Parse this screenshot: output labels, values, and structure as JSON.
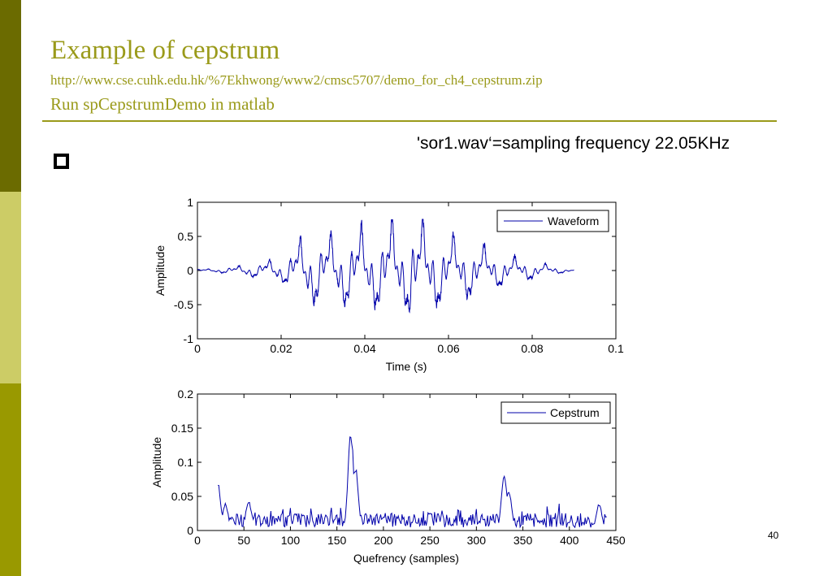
{
  "slide": {
    "title": "Example of cepstrum",
    "url": "http://www.cse.cuhk.edu.hk/%7Ekhwong/www2/cmsc5707/demo_for_ch4_cepstrum.zip",
    "subtitle": "Run spCepstrumDemo in matlab",
    "note": "'sor1.wav‘=sampling frequency 22.05KHz",
    "page_number": "40",
    "accent_color": "#9a9a1a"
  },
  "chart_data": [
    {
      "type": "line",
      "xlabel": "Time (s)",
      "ylabel": "Amplitude",
      "xlim": [
        0,
        0.1
      ],
      "ylim": [
        -1,
        1
      ],
      "xticks": [
        "0",
        "0.02",
        "0.04",
        "0.06",
        "0.08",
        "0.1"
      ],
      "yticks": [
        "-1",
        "-0.5",
        "0",
        "0.5",
        "1"
      ],
      "grid": false,
      "legend": "top-right",
      "line_color": "#0000aa",
      "series": [
        {
          "name": "Waveform",
          "description": "speech waveform sampled at 22.05 kHz, ~0.09 s long; envelope peaks near 0.05 s",
          "peak_points": [
            {
              "x": 0.0,
              "y": 0.0
            },
            {
              "x": 0.01,
              "y": 0.06
            },
            {
              "x": 0.02,
              "y": 0.16
            },
            {
              "x": 0.027,
              "y": -0.5
            },
            {
              "x": 0.03,
              "y": 0.45
            },
            {
              "x": 0.036,
              "y": 0.5
            },
            {
              "x": 0.04,
              "y": -0.55
            },
            {
              "x": 0.043,
              "y": 0.52
            },
            {
              "x": 0.045,
              "y": -0.68
            },
            {
              "x": 0.05,
              "y": 0.52
            },
            {
              "x": 0.051,
              "y": -0.72
            },
            {
              "x": 0.056,
              "y": -0.56
            },
            {
              "x": 0.058,
              "y": 0.48
            },
            {
              "x": 0.065,
              "y": 0.38
            },
            {
              "x": 0.075,
              "y": 0.18
            },
            {
              "x": 0.085,
              "y": 0.06
            },
            {
              "x": 0.09,
              "y": 0.0
            }
          ]
        }
      ]
    },
    {
      "type": "line",
      "xlabel": "Quefrency (samples)",
      "ylabel": "Amplitude",
      "xlim": [
        0,
        450
      ],
      "ylim": [
        0,
        0.2
      ],
      "xticks": [
        "0",
        "50",
        "100",
        "150",
        "200",
        "250",
        "300",
        "350",
        "400",
        "450"
      ],
      "yticks": [
        "0",
        "0.05",
        "0.1",
        "0.15",
        "0.2"
      ],
      "grid": false,
      "legend": "top-right",
      "line_color": "#0000aa",
      "series": [
        {
          "name": "Cepstrum",
          "start": 22,
          "end": 440,
          "baseline": 0.015,
          "peaks": [
            {
              "x": 22,
              "y": 0.07
            },
            {
              "x": 30,
              "y": 0.04
            },
            {
              "x": 55,
              "y": 0.045
            },
            {
              "x": 165,
              "y": 0.147
            },
            {
              "x": 170,
              "y": 0.095
            },
            {
              "x": 330,
              "y": 0.085
            },
            {
              "x": 335,
              "y": 0.06
            },
            {
              "x": 432,
              "y": 0.04
            }
          ]
        }
      ]
    }
  ]
}
